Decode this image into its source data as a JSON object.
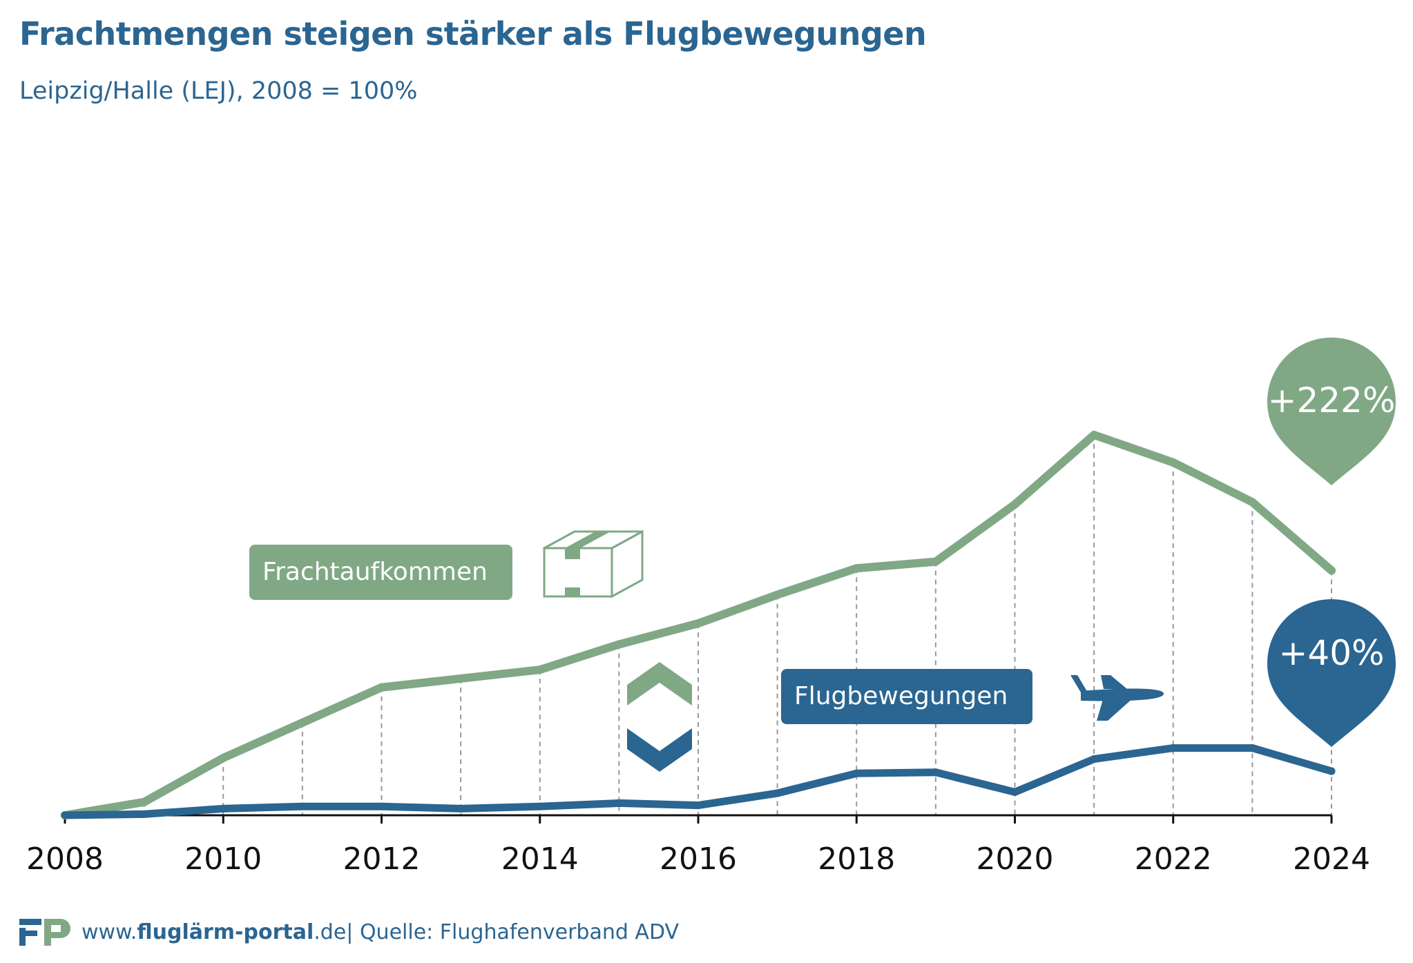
{
  "title": "Frachtmengen steigen stärker als Flugbewegungen",
  "subtitle": "Leipzig/Halle (LEJ), 2008 = 100%",
  "footer": {
    "site_prefix": "www.",
    "site_bold": "fluglärm-portal",
    "site_suffix": ".de",
    "source": " | Quelle: Flughafenverband ADV"
  },
  "labels": {
    "fracht": "Frachtaufkommen",
    "flug": "Flugbewegungen",
    "fracht_change": "+222%",
    "flug_change": "+40%"
  },
  "colors": {
    "fracht": "#80a885",
    "flug": "#2b6591",
    "axis": "#111111",
    "grid": "#999999"
  },
  "icons": {
    "fracht": "package-box-icon",
    "flug": "airplane-icon",
    "divider": "chevron-up-down-icon",
    "logo": "fp-logo-icon"
  },
  "chart_data": {
    "type": "line",
    "x": [
      2008,
      2009,
      2010,
      2011,
      2012,
      2013,
      2014,
      2015,
      2016,
      2017,
      2018,
      2019,
      2020,
      2021,
      2022,
      2023,
      2024
    ],
    "tick_labels": [
      "2008",
      "2010",
      "2012",
      "2014",
      "2016",
      "2018",
      "2020",
      "2022",
      "2024"
    ],
    "series": [
      {
        "name": "Frachtaufkommen",
        "values": [
          100,
          112,
          152,
          184,
          216,
          224,
          232,
          255,
          274,
          300,
          324,
          330,
          382,
          445,
          420,
          384,
          322
        ]
      },
      {
        "name": "Flugbewegungen",
        "values": [
          100,
          101,
          106,
          108,
          108,
          106,
          108,
          111,
          109,
          120,
          138,
          139,
          121,
          151,
          161,
          161,
          140
        ]
      }
    ],
    "xlim": [
      2008,
      2024
    ],
    "ylim": [
      100,
      450
    ],
    "grid": "vertical dashed drop-lines",
    "ylabel": "",
    "xlabel": ""
  }
}
